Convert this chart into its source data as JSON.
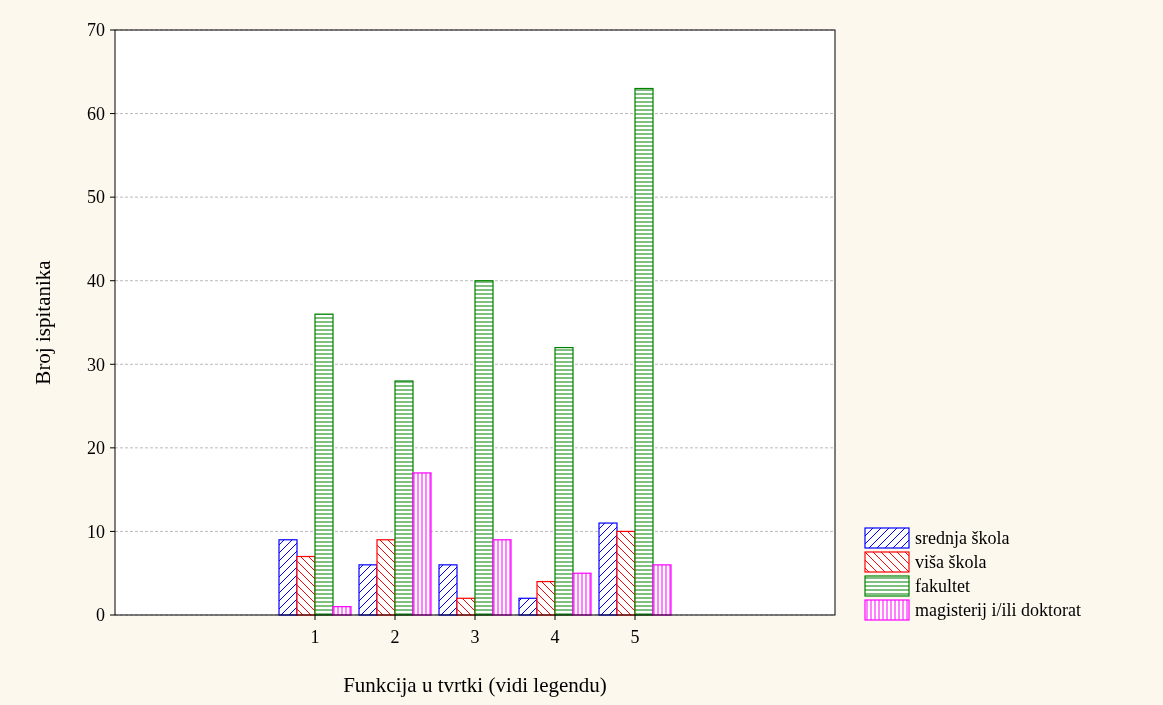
{
  "chart_data": {
    "type": "bar",
    "xlabel": "Funkcija u tvrtki (vidi legendu)",
    "ylabel": "Broj ispitanika",
    "categories": [
      null,
      null,
      "1",
      "2",
      "3",
      "4",
      "5",
      null,
      null
    ],
    "series": [
      {
        "name": "srednja škola",
        "color": "#0000ff",
        "values": [
          null,
          null,
          9,
          6,
          6,
          2,
          11,
          null,
          null
        ]
      },
      {
        "name": "viša škola",
        "color": "#ff0000",
        "values": [
          null,
          null,
          7,
          9,
          2,
          4,
          10,
          null,
          null
        ]
      },
      {
        "name": "fakultet",
        "color": "#008000",
        "values": [
          null,
          null,
          36,
          28,
          40,
          32,
          63,
          null,
          null
        ]
      },
      {
        "name": "magisterij i/ili doktorat",
        "color": "#ff00ff",
        "values": [
          null,
          null,
          1,
          17,
          9,
          5,
          6,
          null,
          null
        ]
      }
    ],
    "ylim": [
      0,
      70
    ],
    "yticks": [
      0,
      10,
      20,
      30,
      40,
      50,
      60,
      70
    ],
    "grid": "y",
    "legend": "bottom right"
  }
}
